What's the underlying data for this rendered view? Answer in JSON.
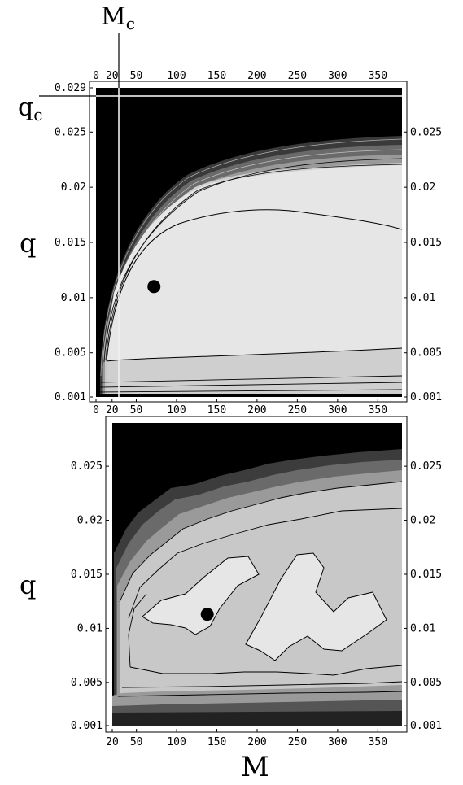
{
  "chart_data": [
    {
      "type": "heatmap",
      "title": "",
      "xlabel": "",
      "ylabel": "q",
      "xlim": [
        0,
        380
      ],
      "ylim": [
        0.001,
        0.029
      ],
      "x_top_ticks": [
        "0",
        "20",
        "50",
        "100",
        "150",
        "200",
        "250",
        "300",
        "350"
      ],
      "x_bottom_ticks": [
        "0",
        "20",
        "50",
        "100",
        "150",
        "200",
        "250",
        "300",
        "350"
      ],
      "y_left_ticks": [
        "0.029",
        "0.025",
        "0.02",
        "0.015",
        "0.01",
        "0.005",
        "0.001"
      ],
      "y_right_ticks": [
        "0.025",
        "0.02",
        "0.015",
        "0.01",
        "0.005",
        "0.001"
      ],
      "critical_lines": {
        "m_label": "M",
        "m_sub": "c",
        "q_label": "q",
        "q_sub": "c",
        "Mc": 28,
        "qc": 0.029
      },
      "marker": {
        "x": 72,
        "y": 0.011
      },
      "colors": {
        "high": "#e6e6e6",
        "mid": "#c8c8c8",
        "low": "#000000"
      }
    },
    {
      "type": "heatmap",
      "title": "",
      "xlabel": "M",
      "ylabel": "q",
      "xlim": [
        20,
        380
      ],
      "ylim": [
        0.001,
        0.029
      ],
      "x_bottom_ticks": [
        "20",
        "50",
        "100",
        "150",
        "200",
        "250",
        "300",
        "350"
      ],
      "y_left_ticks": [
        "0.025",
        "0.02",
        "0.015",
        "0.01",
        "0.005",
        "0.001"
      ],
      "y_right_ticks": [
        "0.025",
        "0.02",
        "0.015",
        "0.01",
        "0.005",
        "0.001"
      ],
      "marker": {
        "x": 138,
        "y": 0.0113
      },
      "colors": {
        "high": "#e6e6e6",
        "mid": "#c8c8c8",
        "low": "#000000"
      }
    }
  ]
}
